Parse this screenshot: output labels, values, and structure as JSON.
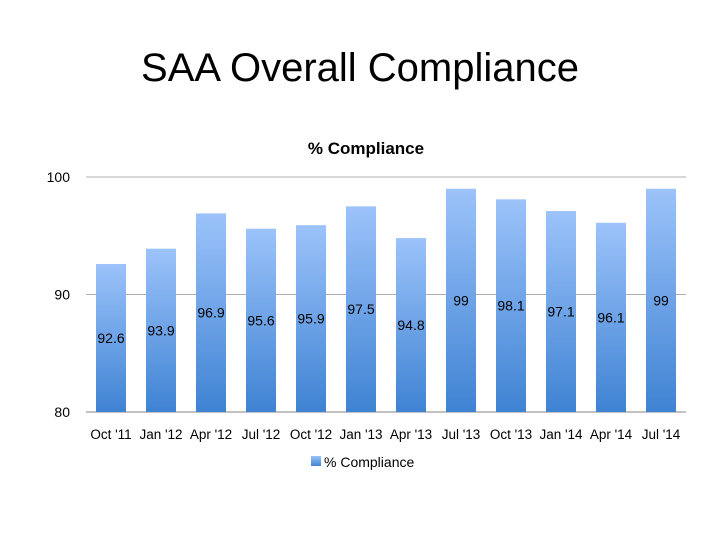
{
  "slide": {
    "title": "SAA Overall Compliance"
  },
  "chart_data": {
    "type": "bar",
    "title": "% Compliance",
    "xlabel": "",
    "ylabel": "",
    "ylim": [
      80,
      100
    ],
    "yticks": [
      80,
      90,
      100
    ],
    "grid": true,
    "legend_position": "bottom",
    "categories": [
      "Oct '11",
      "Jan '12",
      "Apr '12",
      "Jul '12",
      "Oct '12",
      "Jan '13",
      "Apr '13",
      "Jul '13",
      "Oct '13",
      "Jan '14",
      "Apr '14",
      "Jul '14"
    ],
    "series": [
      {
        "name": "% Compliance",
        "values": [
          92.6,
          93.9,
          96.9,
          95.6,
          95.9,
          97.5,
          94.8,
          99,
          98.1,
          97.1,
          96.1,
          99
        ],
        "color_top": "#9cc3fa",
        "color_bottom": "#3f83d3"
      }
    ]
  }
}
